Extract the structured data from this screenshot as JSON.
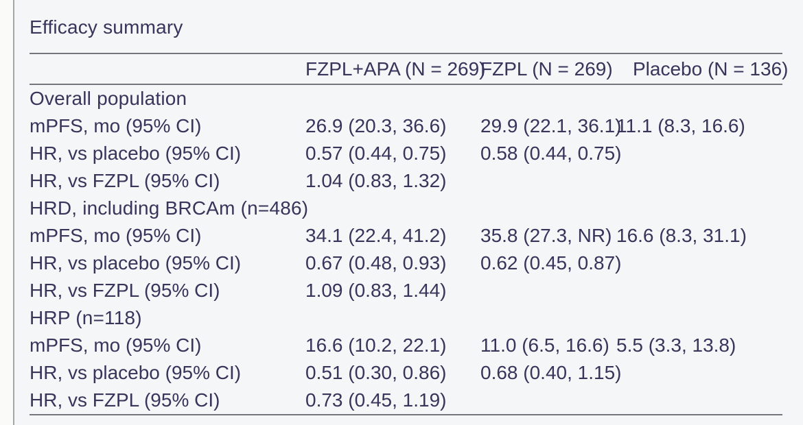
{
  "title": "Efficacy summary",
  "table": {
    "column_headers": {
      "col1": "",
      "fzpl_apa": "FZPL+APA (N = 269)",
      "fzpl": "FZPL (N = 269)",
      "placebo": "Placebo (N = 136)"
    },
    "sections": [
      {
        "header": "Overall population",
        "rows": [
          {
            "label": "mPFS, mo (95% CI)",
            "fzpl_apa": "26.9 (20.3, 36.6)",
            "fzpl": "29.9 (22.1, 36.1)",
            "placebo": "11.1 (8.3, 16.6)"
          },
          {
            "label": "HR, vs placebo (95% CI)",
            "fzpl_apa": "0.57 (0.44, 0.75)",
            "fzpl": "0.58 (0.44, 0.75)",
            "placebo": ""
          },
          {
            "label": "HR, vs FZPL (95% CI)",
            "fzpl_apa": "1.04 (0.83, 1.32)",
            "fzpl": "",
            "placebo": ""
          }
        ]
      },
      {
        "header": "HRD, including BRCAm (n=486)",
        "rows": [
          {
            "label": "mPFS, mo (95% CI)",
            "fzpl_apa": "34.1 (22.4, 41.2)",
            "fzpl": "35.8 (27.3, NR)",
            "placebo": "16.6 (8.3, 31.1)"
          },
          {
            "label": "HR, vs placebo (95% CI)",
            "fzpl_apa": "0.67 (0.48, 0.93)",
            "fzpl": "0.62 (0.45, 0.87)",
            "placebo": ""
          },
          {
            "label": "HR, vs FZPL (95% CI)",
            "fzpl_apa": "1.09 (0.83, 1.44)",
            "fzpl": "",
            "placebo": ""
          }
        ]
      },
      {
        "header": "HRP (n=118)",
        "rows": [
          {
            "label": "mPFS, mo (95% CI)",
            "fzpl_apa": "16.6 (10.2, 22.1)",
            "fzpl": "11.0 (6.5, 16.6)",
            "placebo": "5.5 (3.3, 13.8)"
          },
          {
            "label": "HR, vs placebo (95% CI)",
            "fzpl_apa": "0.51 (0.30, 0.86)",
            "fzpl": "0.68 (0.40, 1.15)",
            "placebo": ""
          },
          {
            "label": "HR, vs FZPL (95% CI)",
            "fzpl_apa": "0.73 (0.45, 1.19)",
            "fzpl": "",
            "placebo": ""
          }
        ]
      }
    ]
  }
}
